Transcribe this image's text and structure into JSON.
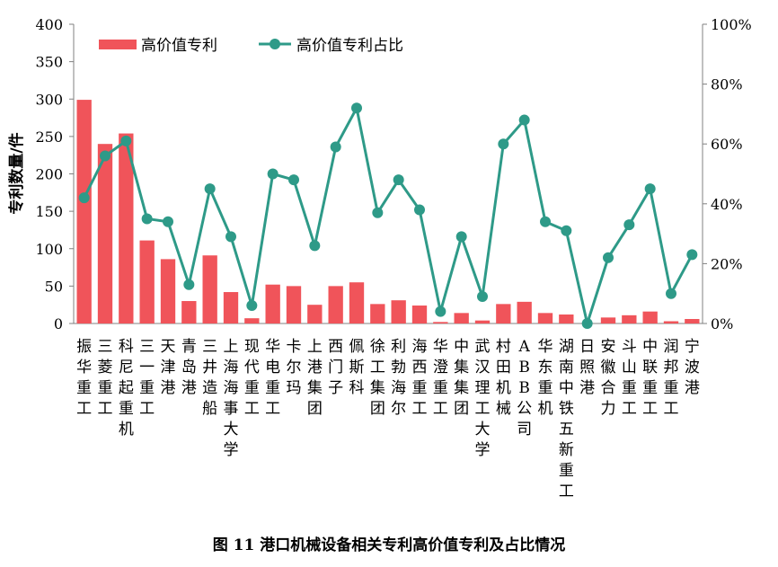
{
  "chart_data": {
    "type": "bar",
    "caption": "图 11  港口机械设备相关专利高价值专利及占比情况",
    "ylabel": "专利数量/件",
    "ylim": [
      0,
      400
    ],
    "y2lim": [
      0,
      100
    ],
    "y_ticks": [
      "0",
      "50",
      "100",
      "150",
      "200",
      "250",
      "300",
      "350",
      "400"
    ],
    "y2_ticks": [
      "0%",
      "20%",
      "40%",
      "60%",
      "80%",
      "100%"
    ],
    "grid": false,
    "legend_position": "top-left",
    "colors": {
      "bar": "#f0545a",
      "line": "#2e9a88",
      "axis": "#808080"
    },
    "categories": [
      "振华重工",
      "三菱重工",
      "科尼起重机",
      "三一重工",
      "天津港",
      "青岛港",
      "三井造船",
      "上海海事大学",
      "现代重工",
      "华电重工",
      "卡尔玛",
      "上港集团",
      "西门子",
      "佩斯科",
      "徐工集团",
      "利勃海尔",
      "海西重工",
      "华澄重工",
      "中集集团",
      "武汉理工大学",
      "村田机械",
      "ABB公司",
      "华东重机",
      "湖南中铁五新重工",
      "日照港",
      "安徽合力",
      "斗山重工",
      "中联重工",
      "润邦重工",
      "宁波港"
    ],
    "series": [
      {
        "name": "高价值专利",
        "type": "bar",
        "values": [
          299,
          240,
          254,
          111,
          86,
          30,
          91,
          42,
          7,
          52,
          50,
          25,
          50,
          55,
          26,
          31,
          24,
          2,
          14,
          4,
          26,
          29,
          14,
          12,
          0,
          8,
          11,
          16,
          3,
          6
        ]
      },
      {
        "name": "高价值专利占比",
        "type": "line",
        "axis": "right",
        "values": [
          42,
          56,
          61,
          35,
          34,
          13,
          45,
          29,
          6,
          50,
          48,
          26,
          59,
          72,
          37,
          48,
          38,
          4,
          29,
          9,
          60,
          68,
          34,
          31,
          0,
          22,
          33,
          45,
          10,
          23
        ]
      }
    ]
  }
}
